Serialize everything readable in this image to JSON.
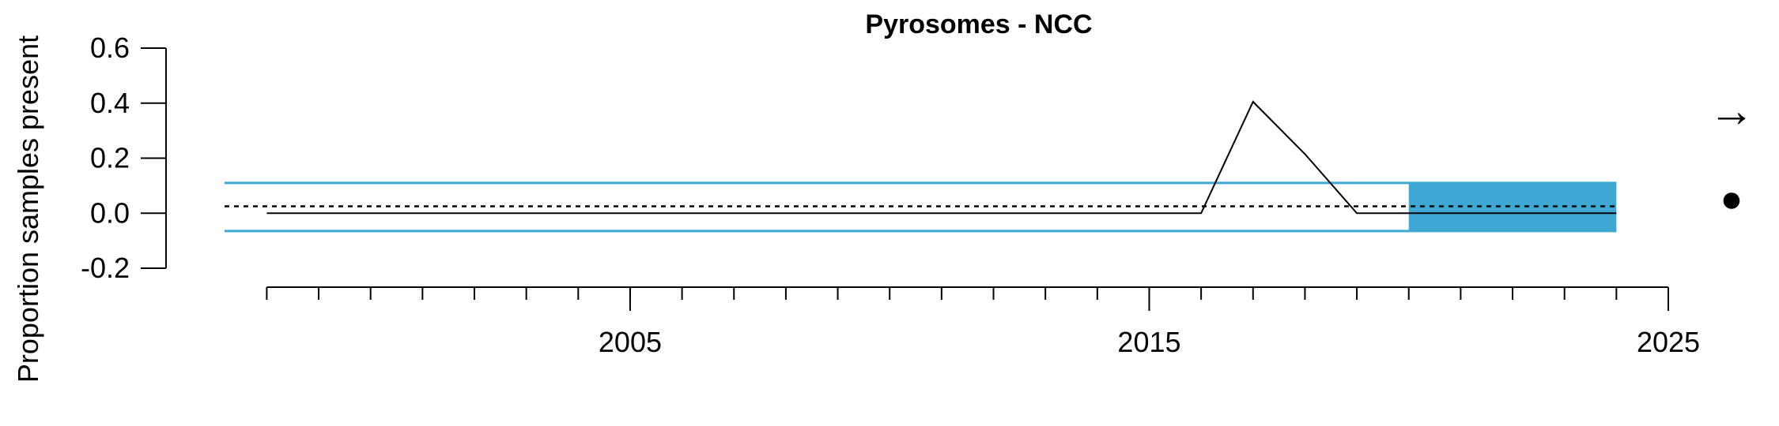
{
  "chart_data": {
    "type": "line",
    "title": "Pyrosomes - NCC",
    "ylabel": "Proportion samples present",
    "xlabel": "",
    "xlim": [
      1997.4,
      2025
    ],
    "ylim": [
      -0.2,
      0.6
    ],
    "x_ticks": [
      2005,
      2015,
      2025
    ],
    "x_tick_labels": [
      "2005",
      "2015",
      "2025"
    ],
    "x_minor_ticks": [
      1998,
      1999,
      2000,
      2001,
      2002,
      2003,
      2004,
      2005,
      2006,
      2007,
      2008,
      2009,
      2010,
      2011,
      2012,
      2013,
      2014,
      2015,
      2016,
      2017,
      2018,
      2019,
      2020,
      2021,
      2022,
      2023,
      2024,
      2025
    ],
    "y_ticks": [
      -0.2,
      0.0,
      0.2,
      0.4,
      0.6
    ],
    "y_tick_labels": [
      "-0.2",
      "0.0",
      "0.2",
      "0.4",
      "0.6"
    ],
    "series": [
      {
        "x": [
          1998,
          1999,
          2000,
          2001,
          2002,
          2003,
          2004,
          2005,
          2006,
          2007,
          2008,
          2009,
          2010,
          2011,
          2012,
          2013,
          2014,
          2015,
          2016,
          2017,
          2018,
          2019,
          2020,
          2021,
          2022,
          2023,
          2024
        ],
        "values": [
          0,
          0,
          0,
          0,
          0,
          0,
          0,
          0,
          0,
          0,
          0,
          0,
          0,
          0,
          0,
          0,
          0,
          0,
          0,
          0.405,
          0.215,
          0,
          0,
          0,
          0,
          0,
          0
        ],
        "color": "#000000"
      }
    ],
    "mean": 0.025,
    "upper_sd": 0.11,
    "lower_sd": -0.065,
    "sd_color": "#3ea8d4",
    "shaded_period": [
      2020,
      2024
    ],
    "shade_color": "#3ea8d4",
    "grid": false,
    "trend_symbol": "→",
    "mean_symbol": "●"
  }
}
